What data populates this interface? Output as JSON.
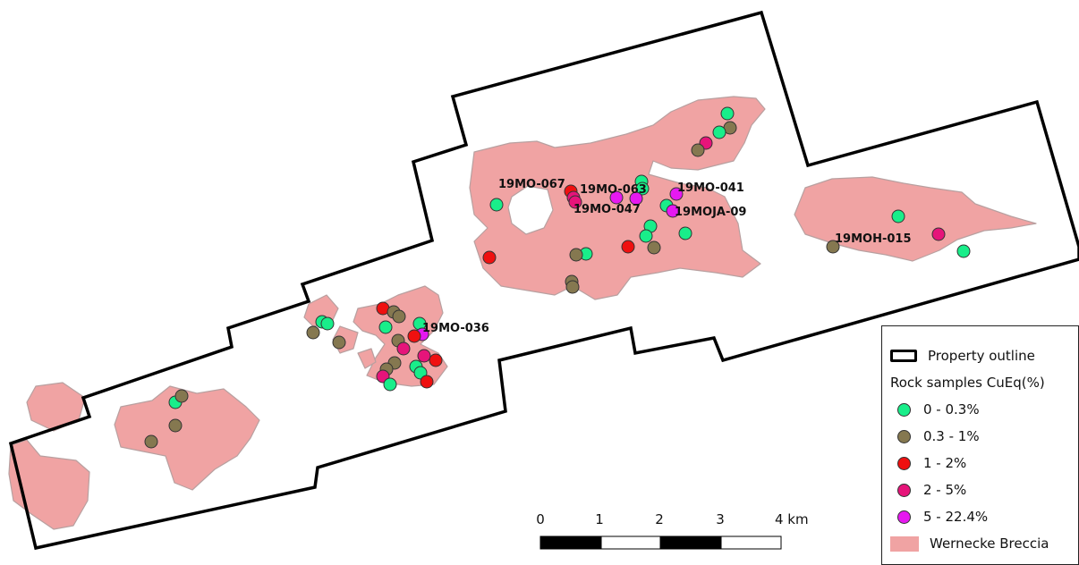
{
  "legend": {
    "outline_label": "Property outline",
    "samples_title": "Rock samples CuEq(%)",
    "classes": [
      {
        "label": "0 - 0.3%",
        "color": "#19ee8a"
      },
      {
        "label": "0.3 - 1%",
        "color": "#857850"
      },
      {
        "label": "1 - 2%",
        "color": "#ef1010"
      },
      {
        "label": "2 - 5%",
        "color": "#e6147a"
      },
      {
        "label": "5 - 22.4%",
        "color": "#e619f0"
      }
    ],
    "breccia_label": "Wernecke Breccia",
    "breccia_color": "#f0a3a3"
  },
  "scalebar": {
    "ticks": [
      "0",
      "1",
      "2",
      "3",
      "4 km"
    ]
  },
  "sample_labels": {
    "s067": "19MO-067",
    "s063": "19MO-063",
    "s047": "19MO-047",
    "s041": "19MO-041",
    "sja09": "19MOJA-09",
    "sh015": "19MOH-015",
    "s036": "19MO-036"
  },
  "samples": [
    {
      "id": "19MO-067",
      "class": 2
    },
    {
      "id": "19MO-063",
      "class": 3
    },
    {
      "id": "19MO-047",
      "class": 4
    },
    {
      "id": "19MO-041",
      "class": 4
    },
    {
      "id": "19MOJA-09",
      "class": 4
    },
    {
      "id": "19MOH-015",
      "class": 1
    },
    {
      "id": "19MO-036",
      "class": 4
    }
  ]
}
